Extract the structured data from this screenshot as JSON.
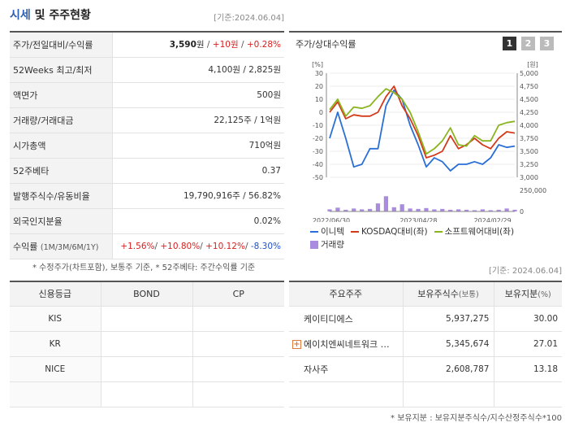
{
  "header": {
    "title_main": "시세",
    "title_rest": " 및 주주현황",
    "base_date": "[기준:2024.06.04]"
  },
  "stats": [
    {
      "label": "주가/전일대비/수익률",
      "main": "3,590",
      "unit": "원",
      "sep1": " / ",
      "change": "+10원",
      "sep2": " / ",
      "pct": "+0.28%"
    },
    {
      "label": "52Weeks 최고/최저",
      "value": "4,100원 / 2,825원"
    },
    {
      "label": "액면가",
      "value": "500원"
    },
    {
      "label": "거래량/거래대금",
      "value": "22,125주 / 1억원"
    },
    {
      "label": "시가총액",
      "value": "710억원"
    },
    {
      "label": "52주베타",
      "value": "0.37"
    },
    {
      "label": "발행주식수/유동비율",
      "value": "19,790,916주 / 56.82%"
    },
    {
      "label": "외국인지분율",
      "value": "0.02%"
    }
  ],
  "returns": {
    "label": "수익률",
    "label_sub": "(1M/3M/6M/1Y)",
    "r1": "+1.56%",
    "r2": "+10.80%",
    "r3": "+10.12%",
    "r4": "-8.30%",
    "sep": "/ "
  },
  "note1": "* 수정주가(차트포함), 보통주 기준, * 52주베타: 주간수익률 기준",
  "chart_panel": {
    "title": "주가/상대수익률",
    "tabs": [
      "1",
      "2",
      "3"
    ]
  },
  "chart_data": {
    "type": "line",
    "x_labels": [
      "2022/06/30",
      "2023/04/28",
      "2024/02/29"
    ],
    "left_axis": {
      "unit": "[%]",
      "ticks": [
        "30",
        "20",
        "10",
        "0",
        "-10",
        "-20",
        "-30",
        "-40",
        "-50"
      ],
      "range": [
        -50,
        30
      ]
    },
    "right_axis": {
      "unit": "[원]",
      "ticks": [
        "5,000",
        "4,750",
        "4,500",
        "4,250",
        "4,000",
        "3,750",
        "3,500",
        "3,250",
        "3,000"
      ],
      "range": [
        3000,
        5000
      ]
    },
    "volume_axis": {
      "ticks": [
        "250,000",
        "0"
      ],
      "range": [
        0,
        250000
      ]
    },
    "series": [
      {
        "name": "이니텍",
        "color": "#2a6fd6",
        "values": [
          -20,
          0,
          -20,
          -42,
          -40,
          -28,
          -28,
          5,
          17,
          10,
          -10,
          -25,
          -42,
          -35,
          -38,
          -45,
          -40,
          -40,
          -38,
          -40,
          -35,
          -25,
          -27,
          -26
        ]
      },
      {
        "name": "KOSDAQ대비(좌)",
        "color": "#d33a1a",
        "values": [
          0,
          8,
          -5,
          -2,
          -3,
          -3,
          0,
          12,
          20,
          5,
          -5,
          -18,
          -35,
          -33,
          -30,
          -18,
          -28,
          -25,
          -20,
          -25,
          -28,
          -20,
          -15,
          -16
        ]
      },
      {
        "name": "소프트웨어대비(좌)",
        "color": "#8ab520",
        "values": [
          2,
          10,
          -3,
          4,
          3,
          5,
          12,
          18,
          15,
          10,
          0,
          -15,
          -32,
          -28,
          -22,
          -12,
          -25,
          -26,
          -18,
          -22,
          -22,
          -10,
          -8,
          -7
        ]
      }
    ],
    "volume": {
      "name": "거래량",
      "color": "#a98be0",
      "values": [
        25000,
        45000,
        20000,
        35000,
        25000,
        30000,
        95000,
        180000,
        50000,
        85000,
        35000,
        30000,
        40000,
        25000,
        30000,
        20000,
        25000,
        20000,
        15000,
        25000,
        15000,
        20000,
        35000,
        20000
      ]
    }
  },
  "base_date_2": "[기준: 2024.06.04]",
  "credit": {
    "headers": [
      "신용등급",
      "BOND",
      "CP"
    ],
    "rows": [
      {
        "agency": "KIS",
        "bond": "",
        "cp": ""
      },
      {
        "agency": "KR",
        "bond": "",
        "cp": ""
      },
      {
        "agency": "NICE",
        "bond": "",
        "cp": ""
      },
      {
        "agency": "",
        "bond": "",
        "cp": ""
      }
    ]
  },
  "shareholders": {
    "headers": {
      "name": "주요주주",
      "shares": "보유주식수",
      "shares_unit": "(보통)",
      "ratio": "보유지분",
      "ratio_unit": "(%)"
    },
    "rows": [
      {
        "name": "케이티디에스",
        "shares": "5,937,275",
        "ratio": "30.00",
        "expand": false
      },
      {
        "name": "에이치엔씨네트워크 …",
        "shares": "5,345,674",
        "ratio": "27.01",
        "expand": true
      },
      {
        "name": "자사주",
        "shares": "2,608,787",
        "ratio": "13.18",
        "expand": false
      }
    ]
  },
  "note2": "* 보유지분 : 보유지분주식수/지수산정주식수*100"
}
